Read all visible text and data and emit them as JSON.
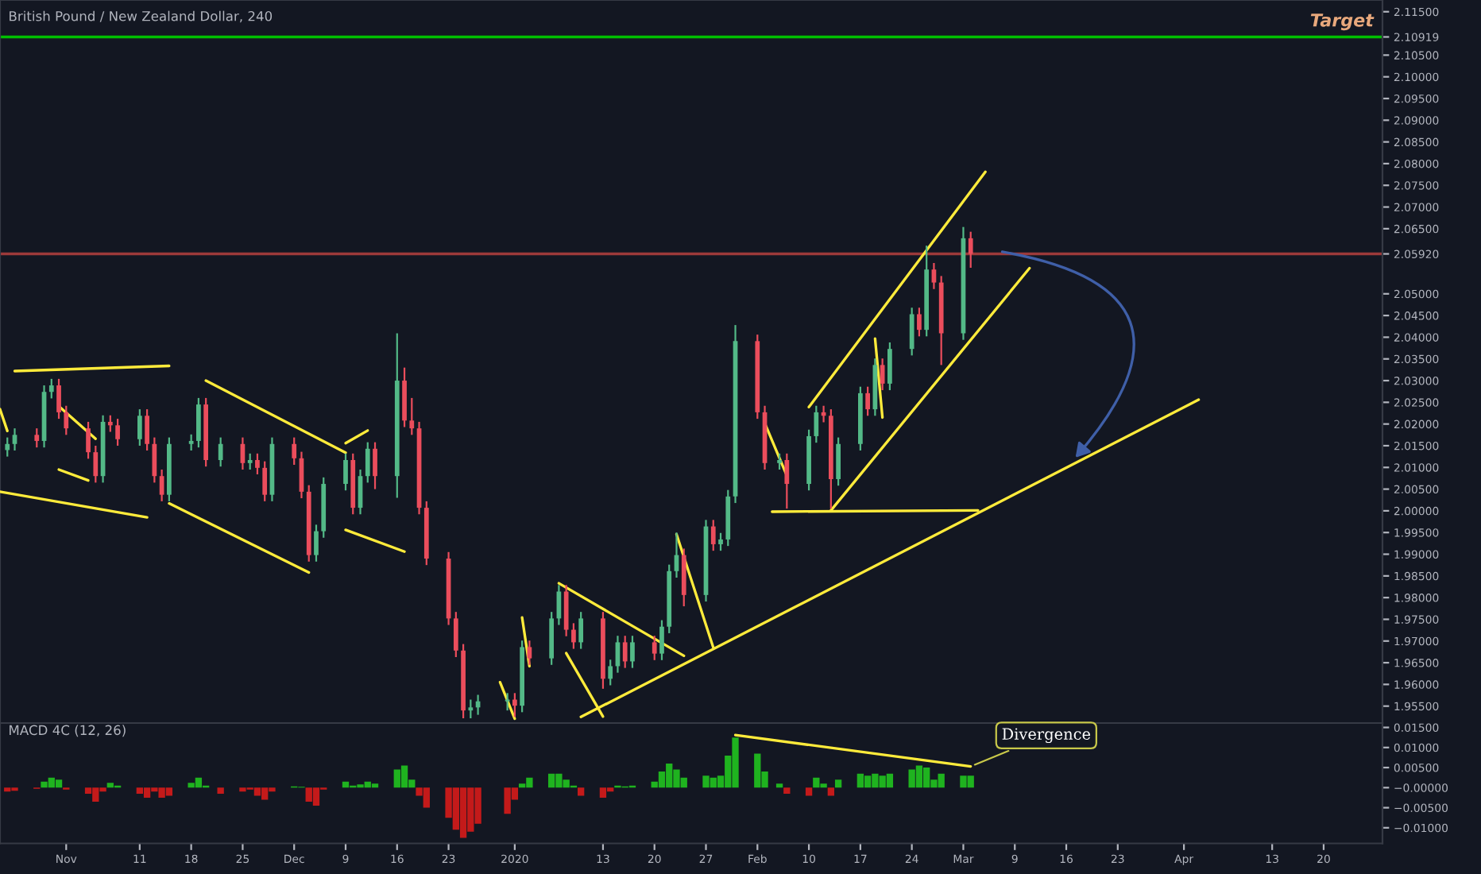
{
  "chart_data": [
    {
      "type": "candlestick",
      "title": "British Pound / New Zealand Dollar, 240",
      "x": [
        "2019-10-24",
        "2019-10-25",
        "2019-10-28",
        "2019-10-29",
        "2019-10-30",
        "2019-10-31",
        "2019-11-01",
        "2019-11-04",
        "2019-11-05",
        "2019-11-06",
        "2019-11-07",
        "2019-11-08",
        "2019-11-11",
        "2019-11-12",
        "2019-11-13",
        "2019-11-14",
        "2019-11-15",
        "2019-11-18",
        "2019-11-19",
        "2019-11-20",
        "2019-11-22",
        "2019-11-25",
        "2019-11-26",
        "2019-11-27",
        "2019-11-28",
        "2019-11-29",
        "2019-12-02",
        "2019-12-03",
        "2019-12-04",
        "2019-12-05",
        "2019-12-06",
        "2019-12-09",
        "2019-12-10",
        "2019-12-11",
        "2019-12-12",
        "2019-12-13",
        "2019-12-16",
        "2019-12-17",
        "2019-12-18",
        "2019-12-19",
        "2019-12-20",
        "2019-12-23",
        "2019-12-24",
        "2019-12-25",
        "2019-12-26",
        "2019-12-27",
        "2019-12-31",
        "2020-01-01",
        "2020-01-02",
        "2020-01-03",
        "2020-01-06",
        "2020-01-07",
        "2020-01-08",
        "2020-01-09",
        "2020-01-10",
        "2020-01-13",
        "2020-01-14",
        "2020-01-15",
        "2020-01-16",
        "2020-01-17",
        "2020-01-20",
        "2020-01-21",
        "2020-01-22",
        "2020-01-23",
        "2020-01-24",
        "2020-01-27",
        "2020-01-28",
        "2020-01-29",
        "2020-01-30",
        "2020-01-31",
        "2020-02-03",
        "2020-02-04",
        "2020-02-06",
        "2020-02-07",
        "2020-02-10",
        "2020-02-11",
        "2020-02-12",
        "2020-02-13",
        "2020-02-14",
        "2020-02-17",
        "2020-02-18",
        "2020-02-19",
        "2020-02-20",
        "2020-02-21",
        "2020-02-24",
        "2020-02-25",
        "2020-02-26",
        "2020-02-27",
        "2020-02-28",
        "2020-03-02",
        "2020-03-03"
      ],
      "ohlc": [
        [
          2.014,
          2.0169,
          2.0125,
          2.0154
        ],
        [
          2.0154,
          2.019,
          2.0139,
          2.0175
        ],
        [
          2.0175,
          2.019,
          2.0146,
          2.0161
        ],
        [
          2.0161,
          2.0289,
          2.0146,
          2.0274
        ],
        [
          2.0274,
          2.0304,
          2.0259,
          2.0289
        ],
        [
          2.0289,
          2.0304,
          2.0212,
          2.0227
        ],
        [
          2.0227,
          2.0242,
          2.0175,
          2.019
        ],
        [
          2.019,
          2.0205,
          2.012,
          2.0135
        ],
        [
          2.0135,
          2.015,
          2.0065,
          2.008
        ],
        [
          2.008,
          2.022,
          2.0065,
          2.0205
        ],
        [
          2.0205,
          2.022,
          2.0182,
          2.0197
        ],
        [
          2.0197,
          2.0212,
          2.015,
          2.0165
        ],
        [
          2.0165,
          2.0234,
          2.015,
          2.0219
        ],
        [
          2.0219,
          2.0234,
          2.0139,
          2.0154
        ],
        [
          2.0154,
          2.0169,
          2.0065,
          2.008
        ],
        [
          2.008,
          2.0095,
          2.0022,
          2.0037
        ],
        [
          2.0037,
          2.0169,
          2.0022,
          2.0154
        ],
        [
          2.0154,
          2.0176,
          2.0139,
          2.0161
        ],
        [
          2.0161,
          2.026,
          2.0146,
          2.0245
        ],
        [
          2.0245,
          2.026,
          2.0102,
          2.0117
        ],
        [
          2.0117,
          2.0169,
          2.0102,
          2.0154
        ],
        [
          2.0154,
          2.0169,
          2.0095,
          2.011
        ],
        [
          2.011,
          2.0132,
          2.0095,
          2.0117
        ],
        [
          2.0117,
          2.0132,
          2.0084,
          2.0099
        ],
        [
          2.0099,
          2.0114,
          2.0022,
          2.0037
        ],
        [
          2.0037,
          2.0169,
          2.0022,
          2.0154
        ],
        [
          2.0154,
          2.0169,
          2.0106,
          2.0121
        ],
        [
          2.0121,
          2.0136,
          2.0029,
          2.0044
        ],
        [
          2.0044,
          2.0059,
          1.9883,
          1.9898
        ],
        [
          1.9898,
          1.9968,
          1.9883,
          1.9953
        ],
        [
          1.9953,
          2.0077,
          1.9938,
          2.0062
        ],
        [
          2.0062,
          2.0132,
          2.0047,
          2.0117
        ],
        [
          2.0117,
          2.0132,
          1.9992,
          2.0007
        ],
        [
          2.0007,
          2.0095,
          1.9992,
          2.008
        ],
        [
          2.008,
          2.0158,
          2.0065,
          2.0143
        ],
        [
          2.0143,
          2.0158,
          2.005,
          2.008
        ],
        [
          2.008,
          2.0409,
          2.003,
          2.03
        ],
        [
          2.03,
          2.033,
          2.0193,
          2.0208
        ],
        [
          2.0208,
          2.026,
          2.0175,
          2.019
        ],
        [
          2.019,
          2.0205,
          1.9992,
          2.0007
        ],
        [
          2.0007,
          2.0022,
          1.9875,
          1.989
        ],
        [
          1.989,
          1.9905,
          1.9737,
          1.9752
        ],
        [
          1.9752,
          1.9767,
          1.9663,
          1.9678
        ],
        [
          1.9678,
          1.9693,
          1.9522,
          1.954
        ],
        [
          1.954,
          1.9565,
          1.9522,
          1.9547
        ],
        [
          1.9547,
          1.9576,
          1.953,
          1.9561
        ],
        [
          1.9561,
          1.958,
          1.954,
          1.9565
        ],
        [
          1.9565,
          1.958,
          1.9525,
          1.9551
        ],
        [
          1.9551,
          1.9701,
          1.9536,
          1.9686
        ],
        [
          1.9686,
          1.9701,
          1.9645,
          1.966
        ],
        [
          1.966,
          1.9767,
          1.9645,
          1.9752
        ],
        [
          1.9752,
          1.9829,
          1.9737,
          1.9814
        ],
        [
          1.9814,
          1.9829,
          1.9711,
          1.9726
        ],
        [
          1.9726,
          1.9741,
          1.9682,
          1.9697
        ],
        [
          1.9697,
          1.9767,
          1.9682,
          1.9752
        ],
        [
          1.9752,
          1.9767,
          1.959,
          1.9613
        ],
        [
          1.9613,
          1.9657,
          1.9598,
          1.9642
        ],
        [
          1.9642,
          1.9712,
          1.9627,
          1.9697
        ],
        [
          1.9697,
          1.9712,
          1.9638,
          1.9653
        ],
        [
          1.9653,
          1.9712,
          1.9638,
          1.9697
        ],
        [
          1.9697,
          1.9712,
          1.9656,
          1.9671
        ],
        [
          1.9671,
          1.9748,
          1.9656,
          1.9733
        ],
        [
          1.9733,
          1.9876,
          1.9718,
          1.9861
        ],
        [
          1.9861,
          1.995,
          1.9846,
          1.9898
        ],
        [
          1.9898,
          1.9913,
          1.978,
          1.9806
        ],
        [
          1.9806,
          1.9979,
          1.9791,
          1.9964
        ],
        [
          1.9964,
          1.9979,
          1.9908,
          1.9923
        ],
        [
          1.9923,
          1.9949,
          1.9908,
          1.9934
        ],
        [
          1.9934,
          2.0048,
          1.9919,
          2.0033
        ],
        [
          2.0033,
          2.0428,
          2.0018,
          2.0391
        ],
        [
          2.0391,
          2.0406,
          2.0212,
          2.0227
        ],
        [
          2.0227,
          2.0242,
          2.0095,
          2.011
        ],
        [
          2.011,
          2.0132,
          2.0095,
          2.0117
        ],
        [
          2.0117,
          2.0132,
          2.0005,
          2.0062
        ],
        [
          2.0062,
          2.0187,
          2.0047,
          2.0172
        ],
        [
          2.0172,
          2.0242,
          2.0157,
          2.0227
        ],
        [
          2.0227,
          2.0242,
          2.0204,
          2.0219
        ],
        [
          2.0219,
          2.0234,
          2.0005,
          2.0073
        ],
        [
          2.0073,
          2.0169,
          2.0058,
          2.0154
        ],
        [
          2.0154,
          2.0286,
          2.0139,
          2.0271
        ],
        [
          2.0271,
          2.0286,
          2.0219,
          2.0234
        ],
        [
          2.0234,
          2.0351,
          2.0219,
          2.0336
        ],
        [
          2.0336,
          2.0351,
          2.0278,
          2.0293
        ],
        [
          2.0293,
          2.0388,
          2.0278,
          2.0373
        ],
        [
          2.0373,
          2.0468,
          2.0358,
          2.0453
        ],
        [
          2.0453,
          2.0468,
          2.0402,
          2.0417
        ],
        [
          2.0417,
          2.0611,
          2.0402,
          2.0556
        ],
        [
          2.0556,
          2.0571,
          2.0511,
          2.0526
        ],
        [
          2.0526,
          2.0541,
          2.0336,
          2.0409
        ],
        [
          2.0409,
          2.0654,
          2.0394,
          2.0628
        ],
        [
          2.0628,
          2.0643,
          2.056,
          2.0592
        ]
      ],
      "colors": [
        "#53b987",
        "#53b987",
        "#eb4d5c",
        "#53b987",
        "#53b987",
        "#eb4d5c",
        "#eb4d5c",
        "#eb4d5c",
        "#eb4d5c",
        "#53b987",
        "#eb4d5c",
        "#eb4d5c",
        "#53b987",
        "#eb4d5c",
        "#eb4d5c",
        "#eb4d5c",
        "#53b987",
        "#53b987",
        "#53b987",
        "#eb4d5c",
        "#53b987",
        "#eb4d5c",
        "#53b987",
        "#eb4d5c",
        "#eb4d5c",
        "#53b987",
        "#eb4d5c",
        "#eb4d5c",
        "#eb4d5c",
        "#53b987",
        "#53b987",
        "#53b987",
        "#eb4d5c",
        "#53b987",
        "#53b987",
        "#eb4d5c",
        "#53b987",
        "#eb4d5c",
        "#eb4d5c",
        "#eb4d5c",
        "#eb4d5c",
        "#eb4d5c",
        "#eb4d5c",
        "#eb4d5c",
        "#53b987",
        "#53b987",
        "#53b987",
        "#eb4d5c",
        "#53b987",
        "#eb4d5c",
        "#53b987",
        "#53b987",
        "#eb4d5c",
        "#eb4d5c",
        "#53b987",
        "#eb4d5c",
        "#53b987",
        "#53b987",
        "#eb4d5c",
        "#53b987",
        "#eb4d5c",
        "#53b987",
        "#53b987",
        "#53b987",
        "#eb4d5c",
        "#53b987",
        "#eb4d5c",
        "#53b987",
        "#53b987",
        "#53b987",
        "#eb4d5c",
        "#eb4d5c",
        "#53b987",
        "#eb4d5c",
        "#53b987",
        "#53b987",
        "#eb4d5c",
        "#eb4d5c",
        "#53b987",
        "#53b987",
        "#eb4d5c",
        "#53b987",
        "#eb4d5c",
        "#53b987",
        "#53b987",
        "#eb4d5c",
        "#53b987",
        "#eb4d5c",
        "#eb4d5c",
        "#53b987",
        "#eb4d5c"
      ],
      "series": [
        {
          "type": "line",
          "color": "#ffeb3b",
          "x": [
            "2019-10-25",
            "2019-11-15"
          ],
          "values": [
            2.0322,
            2.0334
          ]
        },
        {
          "type": "line",
          "color": "#ffeb3b",
          "x": [
            "2019-10-23",
            "2019-11-12"
          ],
          "values": [
            2.0044,
            1.9985
          ]
        },
        {
          "type": "line",
          "color": "#ffeb3b",
          "x": [
            "2019-11-20",
            "2019-12-09"
          ],
          "values": [
            2.03,
            2.0134
          ]
        },
        {
          "type": "line",
          "color": "#ffeb3b",
          "x": [
            "2019-11-15",
            "2019-12-04"
          ],
          "values": [
            2.0017,
            1.9858
          ]
        },
        {
          "type": "line",
          "color": "#ffeb3b",
          "x": [
            "2019-12-09",
            "2019-12-12"
          ],
          "values": [
            2.0156,
            2.0185
          ]
        },
        {
          "type": "line",
          "color": "#ffeb3b",
          "x": [
            "2019-12-09",
            "2019-12-17"
          ],
          "values": [
            1.9956,
            1.9906
          ]
        },
        {
          "type": "line",
          "color": "#ffeb3b",
          "x": [
            "2020-01-10",
            "2020-04-03"
          ],
          "values": [
            1.9525,
            2.0256
          ]
        },
        {
          "type": "line",
          "color": "#ffeb3b",
          "x": [
            "2020-01-07",
            "2020-01-24"
          ],
          "values": [
            1.9833,
            1.9666
          ]
        },
        {
          "type": "line",
          "color": "#ffeb3b",
          "x": [
            "2020-02-10",
            "2020-03-05"
          ],
          "values": [
            2.0239,
            2.0781
          ]
        },
        {
          "type": "line",
          "color": "#ffeb3b",
          "x": [
            "2020-02-13",
            "2020-03-11"
          ],
          "values": [
            2.0001,
            2.0559
          ]
        },
        {
          "type": "line",
          "color": "#ffeb3b",
          "x": [
            "2020-02-05",
            "2020-03-04"
          ],
          "values": [
            1.9998,
            2.0001
          ]
        },
        {
          "type": "line",
          "color": "#ffeb3b",
          "x": [
            "2020-02-04",
            "2020-02-07"
          ],
          "values": [
            2.0202,
            2.0081
          ]
        },
        {
          "type": "line",
          "color": "#ffeb3b",
          "x": [
            "2020-02-19",
            "2020-02-20"
          ],
          "values": [
            2.0397,
            2.0215
          ]
        },
        {
          "type": "line",
          "color": "#ffeb3b",
          "x": [
            "2020-01-23",
            "2020-01-28"
          ],
          "values": [
            1.9946,
            1.9685
          ]
        },
        {
          "type": "line",
          "color": "#ffeb3b",
          "x": [
            "2020-01-08",
            "2020-01-13"
          ],
          "values": [
            1.9672,
            1.9526
          ]
        },
        {
          "type": "line",
          "color": "#ffeb3b",
          "x": [
            "2019-12-30",
            "2020-01-01"
          ],
          "values": [
            1.9605,
            1.9521
          ]
        },
        {
          "type": "line",
          "color": "#ffeb3b",
          "x": [
            "2020-01-02",
            "2020-01-03"
          ],
          "values": [
            1.9754,
            1.9642
          ]
        },
        {
          "type": "line",
          "color": "#ffeb3b",
          "x": [
            "2019-10-23",
            "2019-10-24"
          ],
          "values": [
            2.0234,
            2.0184
          ]
        },
        {
          "type": "line",
          "color": "#ffeb3b",
          "x": [
            "2019-10-31",
            "2019-11-05"
          ],
          "values": [
            2.0241,
            2.0166
          ]
        },
        {
          "type": "line",
          "color": "#ffeb3b",
          "x": [
            "2019-10-31",
            "2019-11-04"
          ],
          "values": [
            2.0095,
            2.007
          ]
        }
      ],
      "ref_lines": [
        {
          "axis": "y",
          "value": 2.10919,
          "label": "Target",
          "color": "#00c000"
        },
        {
          "axis": "y",
          "value": 2.0592,
          "color": "#9c3a3a"
        }
      ],
      "xlim": [
        "2019-10-23",
        "2020-04-28"
      ],
      "ylim": [
        1.9511,
        2.1177
      ],
      "xticks": [
        {
          "value": "2019-11-01",
          "label": null
        },
        {
          "value": "2019-11-11",
          "label": null
        },
        {
          "value": "2019-11-18",
          "label": null
        },
        {
          "value": "2019-11-25",
          "label": null
        },
        {
          "value": "2019-12-02",
          "label": null
        },
        {
          "value": "2019-12-09",
          "label": null
        },
        {
          "value": "2019-12-16",
          "label": null
        },
        {
          "value": "2019-12-23",
          "label": null
        },
        {
          "value": "2020-01-01",
          "label": null
        },
        {
          "value": "2020-01-13",
          "label": null
        },
        {
          "value": "2020-01-20",
          "label": null
        },
        {
          "value": "2020-01-27",
          "label": null
        },
        {
          "value": "2020-02-03",
          "label": null
        },
        {
          "value": "2020-02-10",
          "label": null
        },
        {
          "value": "2020-02-17",
          "label": null
        },
        {
          "value": "2020-02-24",
          "label": null
        },
        {
          "value": "2020-03-02",
          "label": null
        },
        {
          "value": "2020-03-09",
          "label": null
        },
        {
          "value": "2020-03-16",
          "label": null
        },
        {
          "value": "2020-03-23",
          "label": null
        },
        {
          "value": "2020-04-01",
          "label": null
        },
        {
          "value": "2020-04-13",
          "label": null
        },
        {
          "value": "2020-04-20",
          "label": null
        }
      ],
      "yticks": [
        {
          "value": 1.955,
          "label": "1.95500"
        },
        {
          "value": 1.96,
          "label": "1.96000"
        },
        {
          "value": 1.965,
          "label": "1.96500"
        },
        {
          "value": 1.97,
          "label": "1.97000"
        },
        {
          "value": 1.975,
          "label": "1.97500"
        },
        {
          "value": 1.98,
          "label": "1.98000"
        },
        {
          "value": 1.985,
          "label": "1.98500"
        },
        {
          "value": 1.99,
          "label": "1.99000"
        },
        {
          "value": 1.995,
          "label": "1.99500"
        },
        {
          "value": 2.0,
          "label": "2.00000"
        },
        {
          "value": 2.005,
          "label": "2.00500"
        },
        {
          "value": 2.01,
          "label": "2.01000"
        },
        {
          "value": 2.015,
          "label": "2.01500"
        },
        {
          "value": 2.02,
          "label": "2.02000"
        },
        {
          "value": 2.025,
          "label": "2.02500"
        },
        {
          "value": 2.03,
          "label": "2.03000"
        },
        {
          "value": 2.035,
          "label": "2.03500"
        },
        {
          "value": 2.04,
          "label": "2.04000"
        },
        {
          "value": 2.045,
          "label": "2.04500"
        },
        {
          "value": 2.05,
          "label": "2.05000"
        },
        {
          "value": 2.0592,
          "label": "2.05920"
        },
        {
          "value": 2.065,
          "label": "2.06500"
        },
        {
          "value": 2.07,
          "label": "2.07000"
        },
        {
          "value": 2.075,
          "label": "2.07500"
        },
        {
          "value": 2.08,
          "label": "2.08000"
        },
        {
          "value": 2.085,
          "label": "2.08500"
        },
        {
          "value": 2.09,
          "label": "2.09000"
        },
        {
          "value": 2.095,
          "label": "2.09500"
        },
        {
          "value": 2.1,
          "label": "2.10000"
        },
        {
          "value": 2.105,
          "label": "2.10500"
        },
        {
          "value": 2.10919,
          "label": "2.10919"
        },
        {
          "value": 2.115,
          "label": "2.11500"
        }
      ],
      "tick_labels": "y"
    },
    {
      "type": "bar",
      "title": "MACD 4C (12, 26)",
      "x": [
        "2019-10-24",
        "2019-10-25",
        "2019-10-28",
        "2019-10-29",
        "2019-10-30",
        "2019-10-31",
        "2019-11-01",
        "2019-11-04",
        "2019-11-05",
        "2019-11-06",
        "2019-11-07",
        "2019-11-08",
        "2019-11-11",
        "2019-11-12",
        "2019-11-13",
        "2019-11-14",
        "2019-11-15",
        "2019-11-18",
        "2019-11-19",
        "2019-11-20",
        "2019-11-22",
        "2019-11-25",
        "2019-11-26",
        "2019-11-27",
        "2019-11-28",
        "2019-11-29",
        "2019-12-02",
        "2019-12-03",
        "2019-12-04",
        "2019-12-05",
        "2019-12-06",
        "2019-12-09",
        "2019-12-10",
        "2019-12-11",
        "2019-12-12",
        "2019-12-13",
        "2019-12-16",
        "2019-12-17",
        "2019-12-18",
        "2019-12-19",
        "2019-12-20",
        "2019-12-23",
        "2019-12-24",
        "2019-12-25",
        "2019-12-26",
        "2019-12-27",
        "2019-12-31",
        "2020-01-01",
        "2020-01-02",
        "2020-01-03",
        "2020-01-06",
        "2020-01-07",
        "2020-01-08",
        "2020-01-09",
        "2020-01-10",
        "2020-01-13",
        "2020-01-14",
        "2020-01-15",
        "2020-01-16",
        "2020-01-17",
        "2020-01-20",
        "2020-01-21",
        "2020-01-22",
        "2020-01-23",
        "2020-01-24",
        "2020-01-27",
        "2020-01-28",
        "2020-01-29",
        "2020-01-30",
        "2020-01-31",
        "2020-02-03",
        "2020-02-04",
        "2020-02-06",
        "2020-02-07",
        "2020-02-10",
        "2020-02-11",
        "2020-02-12",
        "2020-02-13",
        "2020-02-14",
        "2020-02-17",
        "2020-02-18",
        "2020-02-19",
        "2020-02-20",
        "2020-02-21",
        "2020-02-24",
        "2020-02-25",
        "2020-02-26",
        "2020-02-27",
        "2020-02-28",
        "2020-03-02",
        "2020-03-03"
      ],
      "values": [
        -0.001,
        -0.0008,
        -0.0003,
        0.0015,
        0.0025,
        0.002,
        -0.0005,
        -0.0015,
        -0.0035,
        -0.001,
        0.0012,
        0.0005,
        -0.0015,
        -0.0025,
        -0.001,
        -0.0025,
        -0.002,
        0.0012,
        0.0025,
        0.0005,
        -0.0015,
        -0.001,
        -0.0005,
        -0.002,
        -0.003,
        -0.001,
        0.0003,
        0.0002,
        -0.0035,
        -0.0045,
        -0.0005,
        0.0015,
        0.0005,
        0.0008,
        0.0015,
        0.001,
        0.0045,
        0.0055,
        0.002,
        -0.002,
        -0.005,
        -0.0075,
        -0.0105,
        -0.0125,
        -0.011,
        -0.009,
        -0.0065,
        -0.003,
        0.001,
        0.0025,
        0.0035,
        0.0035,
        0.002,
        0.0005,
        -0.002,
        -0.0025,
        -0.001,
        0.0005,
        0.0003,
        0.0005,
        0.0015,
        0.004,
        0.006,
        0.0045,
        0.0025,
        0.003,
        0.0025,
        0.003,
        0.008,
        0.0125,
        0.0085,
        0.004,
        0.001,
        -0.0015,
        -0.002,
        0.0025,
        0.001,
        -0.002,
        0.002,
        0.0035,
        0.003,
        0.0035,
        0.003,
        0.0035,
        0.0045,
        0.0055,
        0.005,
        0.002,
        0.0035,
        0.003,
        0.003
      ],
      "colors": [
        "#c41a1a",
        "#c41a1a",
        "#c41a1a",
        "#1fb31f",
        "#1fb31f",
        "#1fb31f",
        "#c41a1a",
        "#c41a1a",
        "#c41a1a",
        "#c41a1a",
        "#1fb31f",
        "#1fb31f",
        "#c41a1a",
        "#c41a1a",
        "#c41a1a",
        "#c41a1a",
        "#c41a1a",
        "#1fb31f",
        "#1fb31f",
        "#1fb31f",
        "#c41a1a",
        "#c41a1a",
        "#c41a1a",
        "#c41a1a",
        "#c41a1a",
        "#c41a1a",
        "#1fb31f",
        "#1fb31f",
        "#c41a1a",
        "#c41a1a",
        "#c41a1a",
        "#1fb31f",
        "#1fb31f",
        "#1fb31f",
        "#1fb31f",
        "#1fb31f",
        "#1fb31f",
        "#1fb31f",
        "#1fb31f",
        "#c41a1a",
        "#c41a1a",
        "#c41a1a",
        "#c41a1a",
        "#c41a1a",
        "#c41a1a",
        "#c41a1a",
        "#c41a1a",
        "#c41a1a",
        "#1fb31f",
        "#1fb31f",
        "#1fb31f",
        "#1fb31f",
        "#1fb31f",
        "#1fb31f",
        "#c41a1a",
        "#c41a1a",
        "#c41a1a",
        "#1fb31f",
        "#1fb31f",
        "#1fb31f",
        "#1fb31f",
        "#1fb31f",
        "#1fb31f",
        "#1fb31f",
        "#1fb31f",
        "#1fb31f",
        "#1fb31f",
        "#1fb31f",
        "#1fb31f",
        "#1fb31f",
        "#1fb31f",
        "#1fb31f",
        "#1fb31f",
        "#c41a1a",
        "#c41a1a",
        "#1fb31f",
        "#1fb31f",
        "#c41a1a",
        "#1fb31f",
        "#1fb31f",
        "#1fb31f",
        "#1fb31f",
        "#1fb31f",
        "#1fb31f",
        "#1fb31f",
        "#1fb31f",
        "#1fb31f",
        "#1fb31f",
        "#1fb31f",
        "#1fb31f",
        "#1fb31f"
      ],
      "series": [
        {
          "type": "line",
          "color": "#ffeb3b",
          "x": [
            "2020-01-31",
            "2020-03-03"
          ],
          "values": [
            0.0131,
            0.0053
          ]
        }
      ],
      "annotations": [
        {
          "text": "Divergence",
          "x": "2020-03-03",
          "y": 0.0053
        }
      ],
      "xlim": [
        "2019-10-23",
        "2020-04-28"
      ],
      "ylim": [
        -0.0139,
        0.0161
      ],
      "xticks": [
        {
          "value": "2019-11-01",
          "label": "Nov"
        },
        {
          "value": "2019-11-11",
          "label": "11"
        },
        {
          "value": "2019-11-18",
          "label": "18"
        },
        {
          "value": "2019-11-25",
          "label": "25"
        },
        {
          "value": "2019-12-02",
          "label": "Dec"
        },
        {
          "value": "2019-12-09",
          "label": "9"
        },
        {
          "value": "2019-12-16",
          "label": "16"
        },
        {
          "value": "2019-12-23",
          "label": "23"
        },
        {
          "value": "2020-01-01",
          "label": "2020"
        },
        {
          "value": "2020-01-13",
          "label": "13"
        },
        {
          "value": "2020-01-20",
          "label": "20"
        },
        {
          "value": "2020-01-27",
          "label": "27"
        },
        {
          "value": "2020-02-03",
          "label": "Feb"
        },
        {
          "value": "2020-02-10",
          "label": "10"
        },
        {
          "value": "2020-02-17",
          "label": "17"
        },
        {
          "value": "2020-02-24",
          "label": "24"
        },
        {
          "value": "2020-03-02",
          "label": "Mar"
        },
        {
          "value": "2020-03-09",
          "label": "9"
        },
        {
          "value": "2020-03-16",
          "label": "16"
        },
        {
          "value": "2020-03-23",
          "label": "23"
        },
        {
          "value": "2020-04-01",
          "label": "Apr"
        },
        {
          "value": "2020-04-13",
          "label": "13"
        },
        {
          "value": "2020-04-20",
          "label": "20"
        }
      ],
      "yticks": [
        {
          "value": 0.015,
          "label": "0.01500"
        },
        {
          "value": 0.01,
          "label": "0.01000"
        },
        {
          "value": 0.005,
          "label": "0.00500"
        },
        {
          "value": 0,
          "label": "−0.00000"
        },
        {
          "value": -0.005,
          "label": "−0.00500"
        },
        {
          "value": -0.01,
          "label": "−0.01000"
        }
      ]
    }
  ]
}
